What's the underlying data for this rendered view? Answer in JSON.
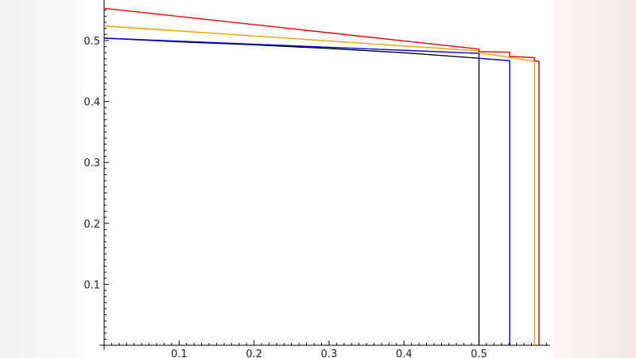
{
  "chart_data": {
    "type": "line",
    "title": "",
    "xlabel": "",
    "ylabel": "",
    "xlim": [
      0,
      0.59
    ],
    "ylim": [
      0,
      0.56
    ],
    "grid": false,
    "x_ticks": [
      "0.1",
      "0.2",
      "0.3",
      "0.4",
      "0.5"
    ],
    "y_ticks": [
      "0.1",
      "0.2",
      "0.3",
      "0.4",
      "0.5"
    ],
    "series": [
      {
        "color": "#000000",
        "points": [
          [
            0,
            0.504
          ],
          [
            0.1,
            0.498
          ],
          [
            0.2,
            0.493
          ],
          [
            0.3,
            0.487
          ],
          [
            0.4,
            0.48
          ],
          [
            0.5,
            0.471
          ],
          [
            0.5,
            0
          ]
        ]
      },
      {
        "color": "#0000dd",
        "points": [
          [
            0,
            0.504
          ],
          [
            0.5,
            0.479
          ],
          [
            0.5,
            0.471
          ],
          [
            0.541,
            0.467
          ],
          [
            0.541,
            0
          ]
        ]
      },
      {
        "color": "#f0a000",
        "points": [
          [
            0,
            0.524
          ],
          [
            0.5,
            0.483
          ],
          [
            0.5,
            0.48
          ],
          [
            0.574,
            0.466
          ],
          [
            0.574,
            0
          ]
        ]
      },
      {
        "color": "#e00000",
        "points": [
          [
            0,
            0.553
          ],
          [
            0.5,
            0.486
          ],
          [
            0.5,
            0.482
          ],
          [
            0.541,
            0.481
          ],
          [
            0.541,
            0.474
          ],
          [
            0.574,
            0.472
          ],
          [
            0.574,
            0.467
          ],
          [
            0.58,
            0.466
          ],
          [
            0.58,
            0
          ]
        ]
      }
    ]
  }
}
